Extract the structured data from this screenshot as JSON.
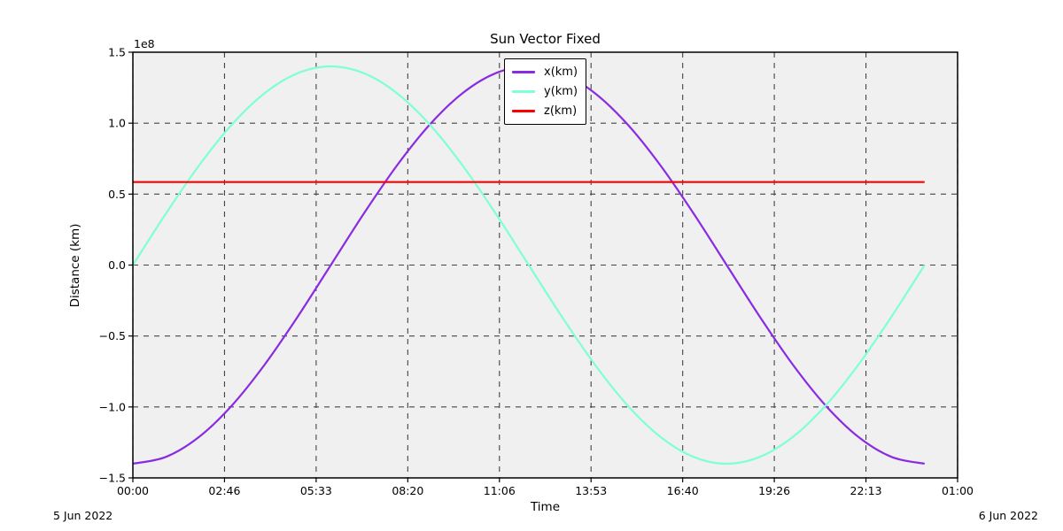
{
  "chart_data": {
    "type": "line",
    "title": "Sun Vector Fixed",
    "xlabel": "Time",
    "ylabel": "Distance (km)",
    "y_offset_text": "1e8",
    "grid": true,
    "legend_position": "upper center",
    "axes_background": "#f0f0f0",
    "grid_color": "#444444",
    "spine_color": "#000000",
    "x_axis": {
      "start_date": "5 Jun 2022",
      "end_date": "6 Jun 2022",
      "range_seconds": [
        0,
        90000
      ],
      "tick_seconds": [
        0,
        10000,
        20000,
        30000,
        40000,
        50000,
        60000,
        70000,
        80000,
        90000
      ],
      "tick_labels": [
        "00:00",
        "02:46",
        "05:33",
        "08:20",
        "11:06",
        "13:53",
        "16:40",
        "19:26",
        "22:13",
        "01:00"
      ]
    },
    "y_axis": {
      "range_km": [
        -150000000,
        150000000
      ],
      "tick_values_km": [
        -150000000,
        -100000000,
        -50000000,
        0,
        50000000,
        100000000,
        150000000
      ],
      "tick_labels": [
        "−1.5",
        "−1.0",
        "−0.5",
        "0.0",
        "0.5",
        "1.0",
        "1.5"
      ]
    },
    "x_hours": [
      0,
      1,
      2,
      3,
      4,
      5,
      6,
      7,
      8,
      9,
      10,
      11,
      12,
      13,
      14,
      15,
      16,
      17,
      18,
      19,
      20,
      21,
      22,
      23,
      24
    ],
    "series": [
      {
        "name": "x(km)",
        "color": "#8A2BE2",
        "values_km": [
          -140000000,
          -135229640,
          -121243556,
          -98994949,
          -70000000,
          -36234666,
          0,
          36234666,
          70000000,
          98994949,
          121243556,
          135229640,
          140000000,
          135229640,
          121243556,
          98994949,
          70000000,
          36234666,
          0,
          -36234666,
          -70000000,
          -98994949,
          -121243556,
          -135229640,
          -140000000
        ]
      },
      {
        "name": "y(km)",
        "color": "#7FFFD4",
        "values_km": [
          0,
          36234666,
          70000000,
          98994949,
          121243556,
          135229640,
          140000000,
          135229640,
          121243556,
          98994949,
          70000000,
          36234666,
          0,
          -36234666,
          -70000000,
          -98994949,
          -121243556,
          -135229640,
          -140000000,
          -135229640,
          -121243556,
          -98994949,
          -70000000,
          -36234666,
          0
        ]
      },
      {
        "name": "z(km)",
        "color": "#FF0000",
        "values_km": [
          58500000,
          58500000,
          58500000,
          58500000,
          58500000,
          58500000,
          58500000,
          58500000,
          58500000,
          58500000,
          58500000,
          58500000,
          58500000,
          58500000,
          58500000,
          58500000,
          58500000,
          58500000,
          58500000,
          58500000,
          58500000,
          58500000,
          58500000,
          58500000,
          58500000
        ]
      }
    ]
  }
}
